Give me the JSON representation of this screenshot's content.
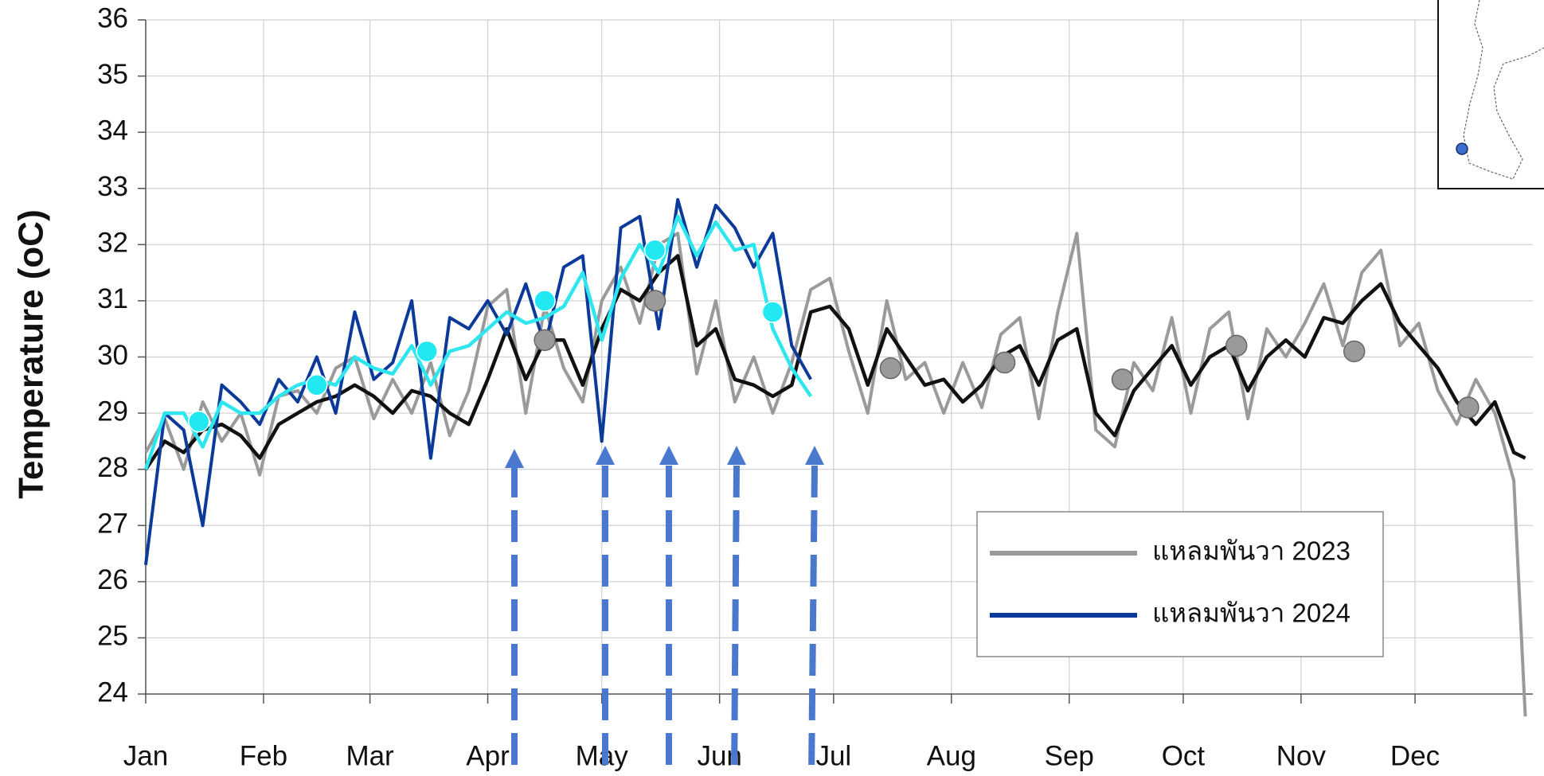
{
  "chart_data": {
    "type": "line",
    "ylabel": "Temperature (oC)",
    "xlim": [
      0,
      365
    ],
    "ylim": [
      24,
      36
    ],
    "xticks": [
      {
        "value": 0,
        "label": "Jan"
      },
      {
        "value": 31,
        "label": "Feb"
      },
      {
        "value": 59,
        "label": "Mar"
      },
      {
        "value": 90,
        "label": "Apr"
      },
      {
        "value": 120,
        "label": "May"
      },
      {
        "value": 151,
        "label": "Jun"
      },
      {
        "value": 181,
        "label": "Jul"
      },
      {
        "value": 212,
        "label": "Aug"
      },
      {
        "value": 243,
        "label": "Sep"
      },
      {
        "value": 273,
        "label": "Oct"
      },
      {
        "value": 304,
        "label": "Nov"
      },
      {
        "value": 334,
        "label": "Dec"
      }
    ],
    "yticks": [
      24,
      25,
      26,
      27,
      28,
      29,
      30,
      31,
      32,
      33,
      34,
      35,
      36
    ],
    "grid": true,
    "legend": "lower right",
    "series": [
      {
        "name": "แหลมพันวา 2023",
        "color": "#9a9a9a",
        "x": [
          0,
          5,
          10,
          15,
          20,
          25,
          30,
          35,
          40,
          45,
          50,
          55,
          60,
          65,
          70,
          75,
          80,
          85,
          90,
          95,
          100,
          105,
          110,
          115,
          120,
          125,
          130,
          135,
          140,
          145,
          150,
          155,
          160,
          165,
          170,
          175,
          180,
          185,
          190,
          195,
          200,
          205,
          210,
          215,
          220,
          225,
          230,
          235,
          240,
          245,
          250,
          255,
          260,
          265,
          270,
          275,
          280,
          285,
          290,
          295,
          300,
          305,
          310,
          315,
          320,
          325,
          330,
          335,
          340,
          345,
          350,
          355,
          360,
          363
        ],
        "values": [
          28.3,
          28.9,
          28.0,
          29.2,
          28.5,
          29.0,
          27.9,
          29.3,
          29.4,
          29.0,
          29.8,
          30.0,
          28.9,
          29.6,
          29.0,
          29.9,
          28.6,
          29.4,
          30.9,
          31.2,
          29.0,
          30.9,
          29.8,
          29.2,
          31.0,
          31.6,
          30.6,
          32.0,
          32.2,
          29.7,
          31.0,
          29.2,
          30.0,
          29.0,
          29.9,
          31.2,
          31.4,
          30.1,
          29.0,
          31.0,
          29.6,
          29.9,
          29.0,
          29.9,
          29.1,
          30.4,
          30.7,
          28.9,
          30.8,
          32.2,
          28.7,
          28.4,
          29.9,
          29.4,
          30.7,
          29.0,
          30.5,
          30.8,
          28.9,
          30.5,
          30.0,
          30.6,
          31.3,
          30.2,
          31.5,
          31.9,
          30.2,
          30.6,
          29.4,
          28.8,
          29.6,
          29.0,
          27.8,
          23.6
        ]
      },
      {
        "color": "#111111",
        "x": [
          0,
          5,
          10,
          15,
          20,
          25,
          30,
          35,
          40,
          45,
          50,
          55,
          60,
          65,
          70,
          75,
          80,
          85,
          90,
          95,
          100,
          105,
          110,
          115,
          120,
          125,
          130,
          135,
          140,
          145,
          150,
          155,
          160,
          165,
          170,
          175,
          180,
          185,
          190,
          195,
          200,
          205,
          210,
          215,
          220,
          225,
          230,
          235,
          240,
          245,
          250,
          255,
          260,
          265,
          270,
          275,
          280,
          285,
          290,
          295,
          300,
          305,
          310,
          315,
          320,
          325,
          330,
          335,
          340,
          345,
          350,
          355,
          360,
          363
        ],
        "values": [
          28.0,
          28.5,
          28.3,
          28.7,
          28.8,
          28.6,
          28.2,
          28.8,
          29.0,
          29.2,
          29.3,
          29.5,
          29.3,
          29.0,
          29.4,
          29.3,
          29.0,
          28.8,
          29.6,
          30.5,
          29.6,
          30.3,
          30.3,
          29.5,
          30.5,
          31.2,
          31.0,
          31.5,
          31.8,
          30.2,
          30.5,
          29.6,
          29.5,
          29.3,
          29.5,
          30.8,
          30.9,
          30.5,
          29.5,
          30.5,
          30.0,
          29.5,
          29.6,
          29.2,
          29.5,
          30.0,
          30.2,
          29.5,
          30.3,
          30.5,
          29.0,
          28.6,
          29.4,
          29.8,
          30.2,
          29.5,
          30.0,
          30.2,
          29.4,
          30.0,
          30.3,
          30.0,
          30.7,
          30.6,
          31.0,
          31.3,
          30.6,
          30.2,
          29.8,
          29.2,
          28.8,
          29.2,
          28.3,
          28.2
        ]
      },
      {
        "name": "แหลมพันวา 2024",
        "color": "#0b3a9a",
        "x": [
          0,
          5,
          10,
          15,
          20,
          25,
          30,
          35,
          40,
          45,
          50,
          55,
          60,
          65,
          70,
          75,
          80,
          85,
          90,
          95,
          100,
          105,
          110,
          115,
          120,
          125,
          130,
          135,
          140,
          145,
          150,
          155,
          160,
          165,
          170,
          175
        ],
        "values": [
          26.3,
          29.0,
          28.7,
          27.0,
          29.5,
          29.2,
          28.8,
          29.6,
          29.2,
          30.0,
          29.0,
          30.8,
          29.6,
          29.9,
          31.0,
          28.2,
          30.7,
          30.5,
          31.0,
          30.4,
          31.3,
          30.2,
          31.6,
          31.8,
          28.5,
          32.3,
          32.5,
          30.5,
          32.8,
          31.6,
          32.7,
          32.3,
          31.6,
          32.2,
          30.2,
          29.6
        ]
      },
      {
        "color": "#2ee6f0",
        "x": [
          0,
          5,
          10,
          15,
          20,
          25,
          30,
          35,
          40,
          45,
          50,
          55,
          60,
          65,
          70,
          75,
          80,
          85,
          90,
          95,
          100,
          105,
          110,
          115,
          120,
          125,
          130,
          135,
          140,
          145,
          150,
          155,
          160,
          165,
          170,
          175
        ],
        "values": [
          28.0,
          29.0,
          29.0,
          28.4,
          29.2,
          29.0,
          29.0,
          29.3,
          29.5,
          29.6,
          29.5,
          30.0,
          29.8,
          29.7,
          30.2,
          29.5,
          30.1,
          30.2,
          30.5,
          30.8,
          30.6,
          30.7,
          30.9,
          31.5,
          30.3,
          31.4,
          32.0,
          31.5,
          32.5,
          31.8,
          32.4,
          31.9,
          32.0,
          30.5,
          29.8,
          29.3
        ]
      },
      {
        "color": "#9a9a9a",
        "style": "points",
        "x": [
          105,
          134,
          196,
          226,
          257,
          287,
          318,
          348
        ],
        "values": [
          30.3,
          31.0,
          29.8,
          29.9,
          29.6,
          30.2,
          30.1,
          29.1
        ]
      },
      {
        "color": "#22e8f2",
        "style": "points",
        "x": [
          14,
          45,
          74,
          105,
          134,
          165
        ],
        "values": [
          28.85,
          29.5,
          30.1,
          31.0,
          31.9,
          30.8
        ]
      }
    ]
  }
}
